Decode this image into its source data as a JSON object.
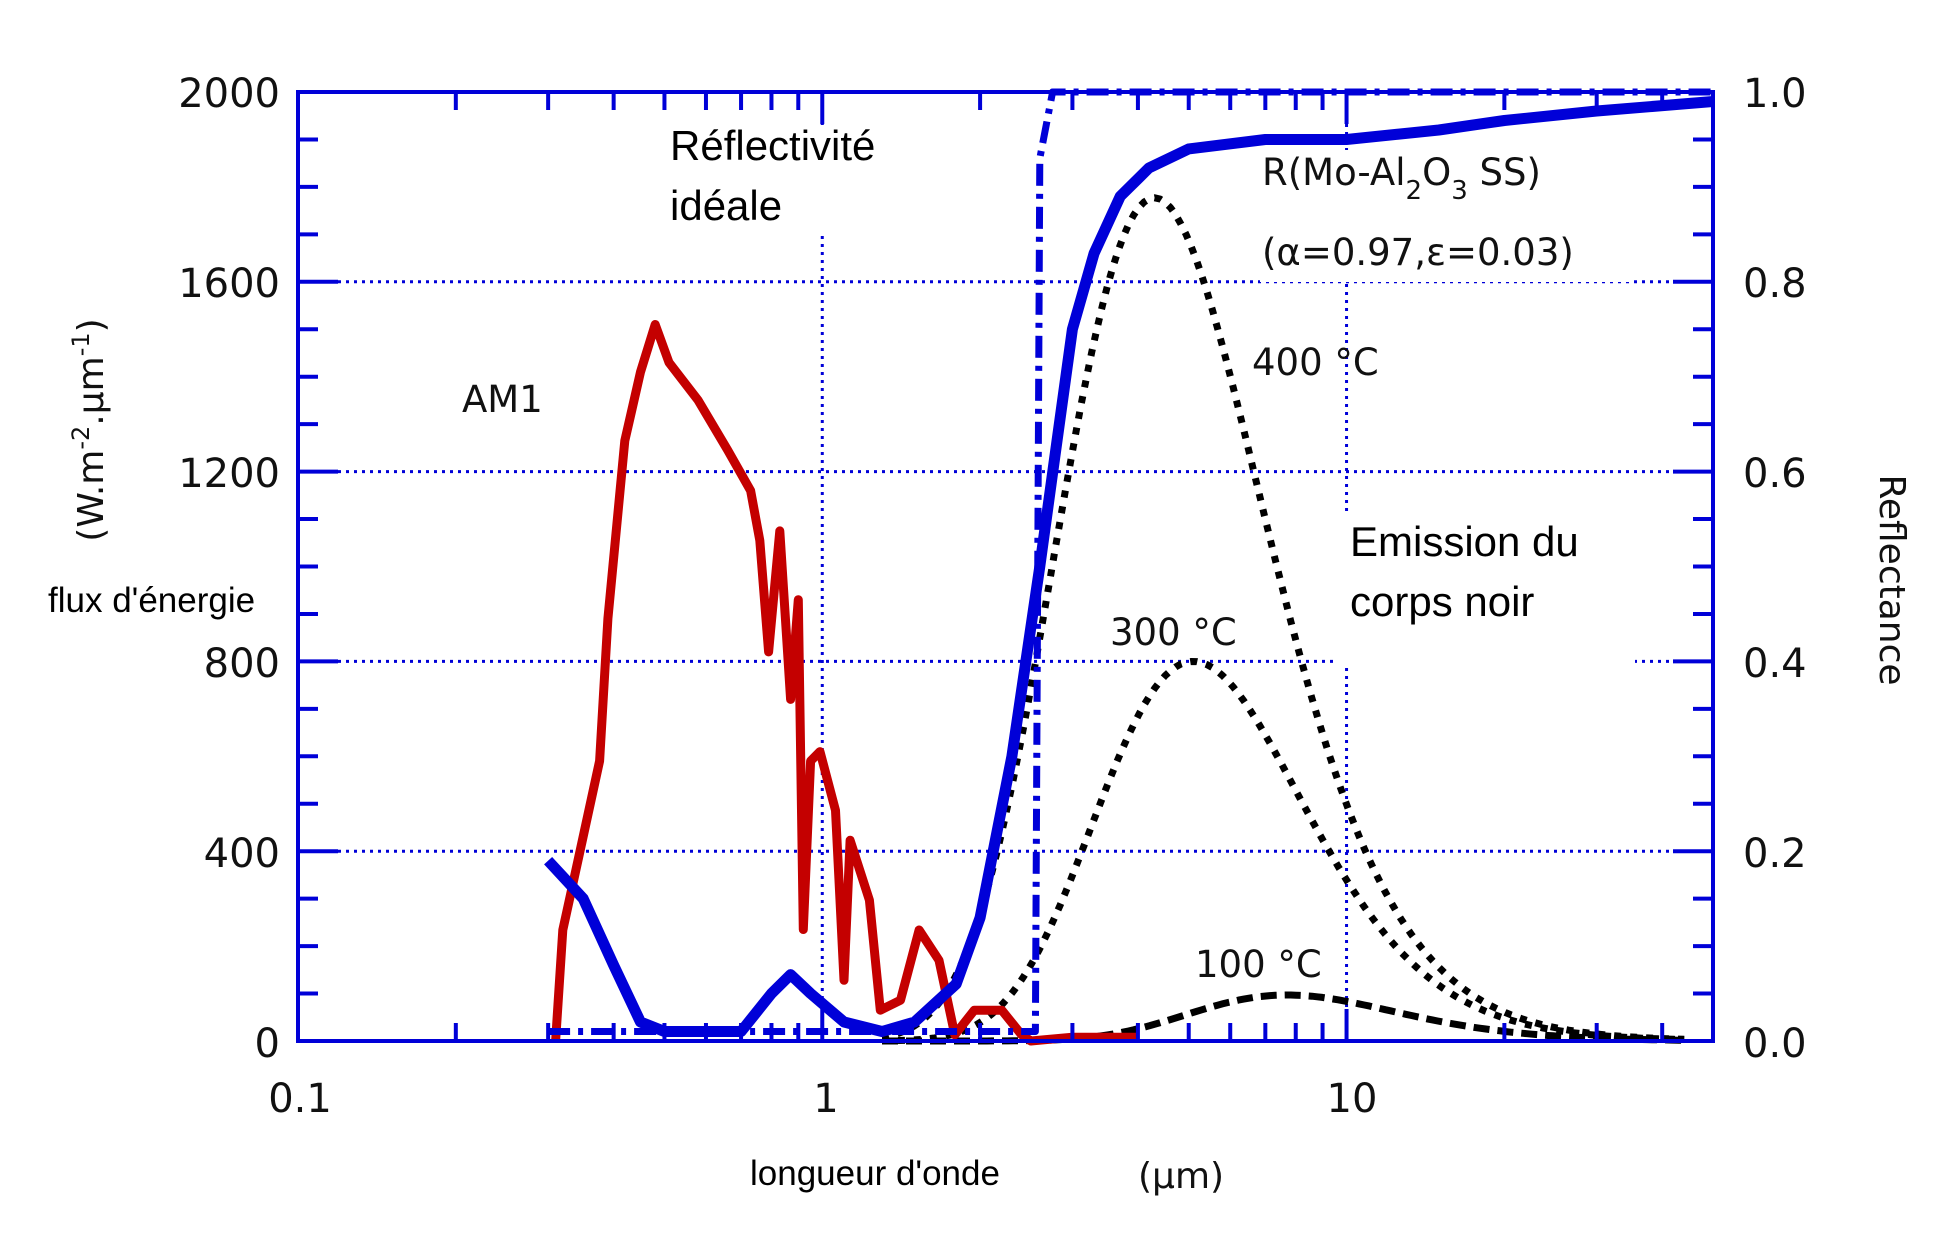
{
  "chart_data": {
    "type": "line",
    "title": "",
    "xlabel": "longueur d'onde",
    "xunit": "(µm)",
    "xscale": "log",
    "xlim": [
      0.1,
      50
    ],
    "x_ticks": [
      "0.1",
      "1",
      "10"
    ],
    "ylabel_left": "(W.m⁻².µm⁻¹)",
    "ylabel_left_parts": {
      "open": "(W.m",
      "sup1": "-2",
      "mid": ".µm",
      "sup2": "-1",
      "close": ")"
    },
    "ylabel_left_text": "flux d'énergie",
    "ylim_left": [
      0,
      2000
    ],
    "y_ticks_left": [
      "0",
      "400",
      "800",
      "1200",
      "1600",
      "2000"
    ],
    "ylabel_right": "Reflectance",
    "ylim_right": [
      0.0,
      1.0
    ],
    "y_ticks_right": [
      "0.0",
      "0.2",
      "0.4",
      "0.6",
      "0.8",
      "1.0"
    ],
    "grid": true,
    "annotations": {
      "ideal": [
        "Réflectivité",
        "idéale"
      ],
      "am1": "AM1",
      "material": {
        "prefix": "R(Mo-Al",
        "sub1": "2",
        "mid": "O",
        "sub2": "3",
        "suffix": " SS)"
      },
      "params": "(α=0.97,ε=0.03)",
      "t400": "400 °C",
      "t300": "300 °C",
      "t100": "100 °C",
      "blackbody": [
        "Emission du",
        "corps noir"
      ]
    },
    "colors": {
      "axis": "#0000d8",
      "am1": "#c40000",
      "reflectance": "#0000d8",
      "blackbody": "#000000",
      "grid": "#0000d8"
    },
    "series": [
      {
        "name": "AM1",
        "axis": "left",
        "style": "solid-red",
        "x": [
          0.31,
          0.32,
          0.345,
          0.376,
          0.39,
          0.42,
          0.45,
          0.48,
          0.51,
          0.58,
          0.66,
          0.73,
          0.76,
          0.79,
          0.83,
          0.87,
          0.9,
          0.92,
          0.95,
          0.99,
          1.06,
          1.1,
          1.13,
          1.23,
          1.29,
          1.41,
          1.53,
          1.67,
          1.79,
          1.95,
          2.2,
          2.4,
          2.5,
          3.0,
          3.5,
          4.0
        ],
        "y": [
          0,
          234,
          400,
          590,
          890,
          1265,
          1410,
          1510,
          1430,
          1350,
          1245,
          1160,
          1055,
          820,
          1075,
          720,
          930,
          235,
          590,
          610,
          486,
          128,
          423,
          297,
          65,
          86,
          234,
          170,
          13,
          65,
          65,
          13,
          0,
          8,
          8,
          8
        ]
      },
      {
        "name": "R(Mo-Al2O3 SS)",
        "axis": "right",
        "style": "solid-blue",
        "x": [
          0.3,
          0.35,
          0.4,
          0.45,
          0.5,
          0.6,
          0.7,
          0.8,
          0.87,
          0.95,
          1.1,
          1.3,
          1.5,
          1.8,
          2.0,
          2.3,
          2.6,
          2.8,
          3.0,
          3.3,
          3.7,
          4.2,
          5,
          7,
          10,
          15,
          20,
          30,
          50
        ],
        "y": [
          0.19,
          0.15,
          0.08,
          0.02,
          0.01,
          0.01,
          0.01,
          0.05,
          0.07,
          0.05,
          0.02,
          0.01,
          0.02,
          0.06,
          0.13,
          0.3,
          0.5,
          0.63,
          0.75,
          0.83,
          0.89,
          0.92,
          0.94,
          0.95,
          0.95,
          0.96,
          0.97,
          0.98,
          0.99
        ]
      },
      {
        "name": "Réflectivité idéale",
        "axis": "right",
        "style": "dashdot-blue",
        "x": [
          0.3,
          2.55,
          2.6,
          2.75,
          50
        ],
        "y": [
          0.01,
          0.01,
          0.93,
          1.0,
          1.0
        ]
      },
      {
        "name": "400 °C",
        "axis": "left",
        "style": "dotted-black",
        "peak": {
          "x": 4.3,
          "y": 1777
        }
      },
      {
        "name": "300 °C",
        "axis": "left",
        "style": "dotted-black",
        "peak": {
          "x": 5.1,
          "y": 800
        }
      },
      {
        "name": "100 °C",
        "axis": "left",
        "style": "dashed-black",
        "peak": {
          "x": 7.7,
          "y": 97
        }
      }
    ]
  }
}
